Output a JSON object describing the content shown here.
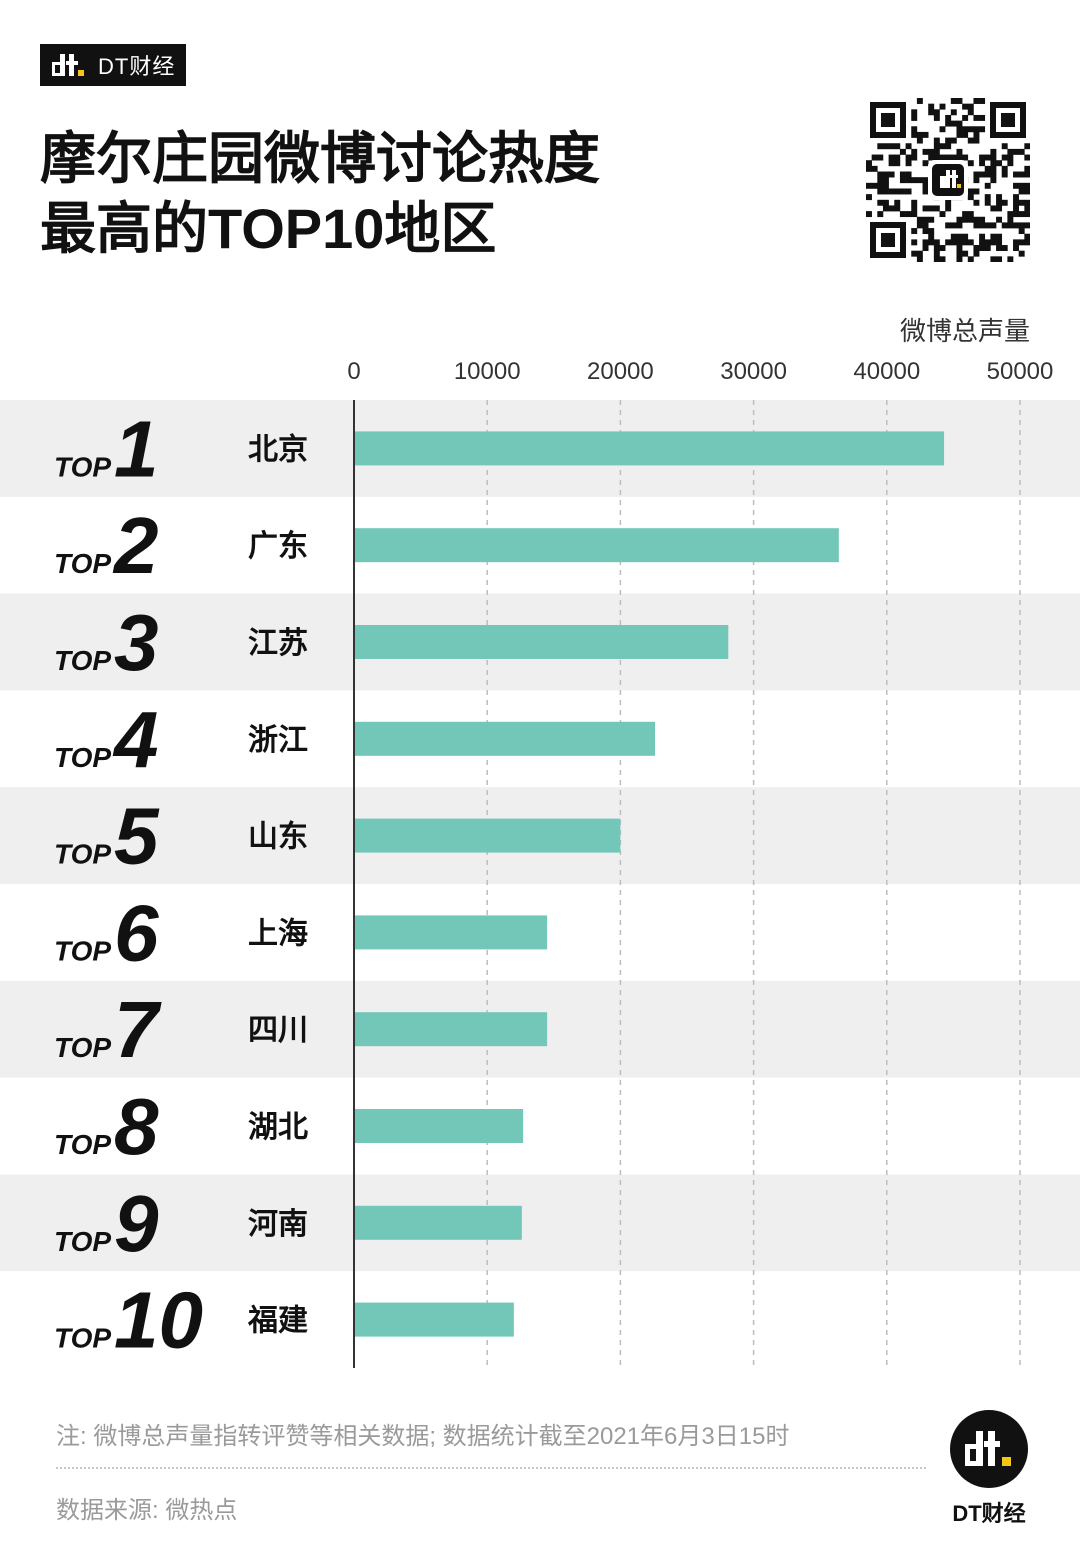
{
  "brand": {
    "name": "DT财经",
    "logo_icon": "dt-logo-icon"
  },
  "title_lines": [
    "摩尔庄园微博讨论热度",
    "最高的TOP10地区"
  ],
  "qr": {
    "icon": "qr-code-icon"
  },
  "chart_data": {
    "type": "bar",
    "orientation": "horizontal",
    "unit_label": "微博总声量",
    "xlim": [
      0,
      50000
    ],
    "x_ticks": [
      "0",
      "10000",
      "20000",
      "30000",
      "40000",
      "50000"
    ],
    "rank_prefix": "TOP",
    "ranks": [
      "1",
      "2",
      "3",
      "4",
      "5",
      "6",
      "7",
      "8",
      "9",
      "10"
    ],
    "categories": [
      "北京",
      "广东",
      "江苏",
      "浙江",
      "山东",
      "上海",
      "四川",
      "湖北",
      "河南",
      "福建"
    ],
    "values": [
      44300,
      36400,
      28100,
      22600,
      20000,
      14500,
      14500,
      12700,
      12600,
      12000
    ],
    "grid": true,
    "bar_color": "#72c7b9",
    "stripe_color": "#efefef"
  },
  "footer": {
    "note": "注: 微博总声量指转评赞等相关数据; 数据统计截至2021年6月3日15时",
    "source": "数据来源: 微热点",
    "logo_label": "DT财经"
  }
}
